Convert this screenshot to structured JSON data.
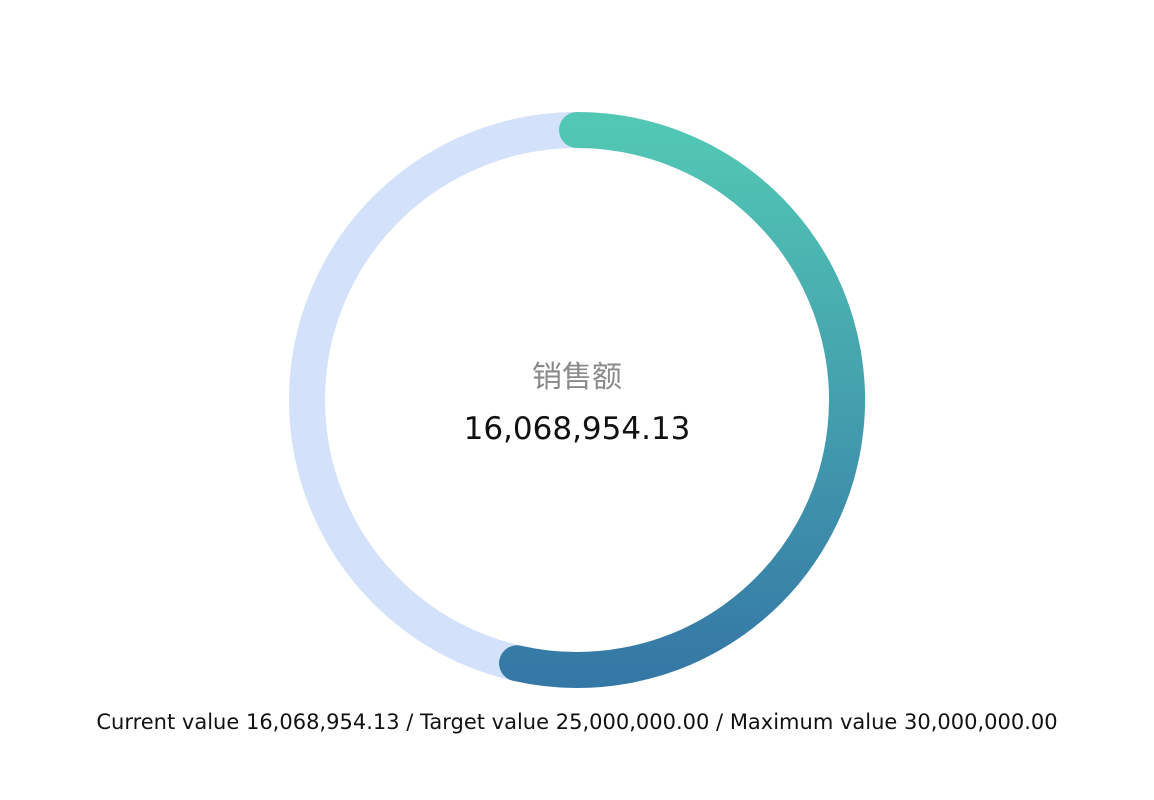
{
  "chart_data": {
    "type": "gauge",
    "label": "销售额",
    "current_value": 16068954.13,
    "current_display": "16,068,954.13",
    "target_value": 25000000.0,
    "maximum_value": 30000000.0
  },
  "footer": {
    "current_label": "Current value",
    "current_display": "16,068,954.13",
    "target_label": "Target value",
    "target_display": "25,000,000.00",
    "maximum_label": "Maximum value",
    "maximum_display": "30,000,000.00",
    "separator": " / "
  },
  "colors": {
    "track": "#d3e1fb",
    "gradient_start": "#52c7b4",
    "gradient_end": "#3578a6"
  }
}
